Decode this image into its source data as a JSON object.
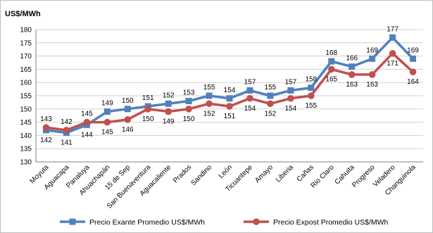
{
  "chart_data": {
    "type": "line",
    "ylabel": "US$/MWh",
    "ylim": [
      130,
      180
    ],
    "ytick_step": 5,
    "grid": true,
    "legend_position": "bottom",
    "categories": [
      "Moyuta",
      "Aguacapa",
      "Panaluya",
      "Ahuachapán",
      "15 de Sep",
      "San Buenaventura",
      "Aguacaliente",
      "Prados",
      "Sandino",
      "León",
      "Ticuantepe",
      "Amayo",
      "Liberia",
      "Cañas",
      "Rio Claro",
      "Cahuita",
      "Progreso",
      "Veladero",
      "Changuinola"
    ],
    "series": [
      {
        "name": "Precio Exante Promedio US$/MWh",
        "color": "#4f81bd",
        "marker": "square",
        "values": [
          142,
          141,
          144,
          149,
          150,
          151,
          152,
          153,
          155,
          154,
          157,
          155,
          157,
          158,
          168,
          166,
          169,
          177,
          169
        ],
        "labels": [
          "142",
          "141",
          "144",
          "149",
          "150",
          "151",
          "152",
          "153",
          "155",
          "154",
          "157",
          "155",
          "157",
          "158",
          "168",
          "166",
          "169",
          "177",
          "169"
        ]
      },
      {
        "name": "Precio Expost Promedio US$/MWh",
        "color": "#c0504d",
        "marker": "circle",
        "values": [
          143,
          142,
          145,
          145,
          146,
          150,
          149,
          150,
          152,
          151,
          154,
          152,
          154,
          155,
          165,
          163,
          163,
          171,
          164
        ],
        "labels": [
          "143",
          "142",
          "145",
          "145",
          "146",
          "150",
          "149",
          "150",
          "152",
          "151",
          "154",
          "152",
          "154",
          "155",
          "165",
          "163",
          "163",
          "171",
          "164"
        ]
      }
    ]
  }
}
